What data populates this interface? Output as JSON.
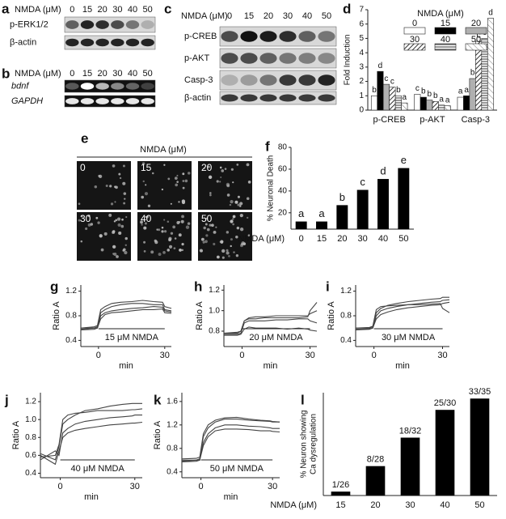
{
  "panels": {
    "a": {
      "letter": "a",
      "header": "NMDA   (μM)",
      "doses": [
        "0",
        "15",
        "20",
        "30",
        "40",
        "50"
      ],
      "rows": [
        "p-ERK1/2",
        "β-actin"
      ]
    },
    "b": {
      "letter": "b",
      "header": "NMDA   (μM)",
      "doses": [
        "0",
        "15",
        "20",
        "30",
        "40",
        "50"
      ],
      "rows": [
        "bdnf",
        "GAPDH"
      ]
    },
    "c": {
      "letter": "c",
      "header": "NMDA (μM)",
      "doses": [
        "0",
        "15",
        "20",
        "30",
        "40",
        "50"
      ],
      "rows": [
        "p-CREB",
        "p-AKT",
        "Casp-3",
        "β-actin"
      ]
    },
    "e": {
      "letter": "e",
      "header": "NMDA (μM)",
      "tiles": [
        "0",
        "15",
        "20",
        "30",
        "40",
        "50"
      ]
    }
  },
  "chart_data": [
    {
      "type": "bar",
      "letter": "d",
      "ylabel": "Fold Induction",
      "legend_title": "NMDA (μM)",
      "categories": [
        "p-CREB",
        "p-AKT",
        "Casp-3"
      ],
      "series": [
        {
          "name": "0",
          "color": "#ffffff",
          "pattern": null,
          "values": [
            1,
            1.1,
            0.9
          ],
          "letters": [
            "b",
            "c",
            "a"
          ]
        },
        {
          "name": "15",
          "color": "#000000",
          "pattern": null,
          "values": [
            2.7,
            0.9,
            1
          ],
          "letters": [
            "d",
            "b",
            "a"
          ]
        },
        {
          "name": "20",
          "color": "#b0b0b0",
          "pattern": null,
          "values": [
            1.8,
            0.7,
            2.2
          ],
          "letters": [
            "c",
            "b",
            "b"
          ]
        },
        {
          "name": "30",
          "color": "#555555",
          "pattern": "diagonal",
          "values": [
            1.6,
            0.6,
            4.8
          ],
          "letters": [
            "c",
            "b",
            "c"
          ]
        },
        {
          "name": "40",
          "color": "#555555",
          "pattern": "horizontal",
          "values": [
            1.0,
            0.35,
            5.0
          ],
          "letters": [
            "b",
            "a",
            "c"
          ]
        },
        {
          "name": "50",
          "color": "#888888",
          "pattern": "light-diagonal",
          "values": [
            0.5,
            0.3,
            6.4
          ],
          "letters": [
            "a",
            "a",
            "d"
          ]
        }
      ],
      "ylim": [
        0,
        7
      ],
      "yticks": [
        0,
        1,
        2,
        3,
        4,
        5,
        6,
        7
      ]
    },
    {
      "type": "bar",
      "letter": "f",
      "ylabel": "% Neuronal Death",
      "xlabel": "NMDA (μM)",
      "categories": [
        "0",
        "15",
        "20",
        "30",
        "40",
        "50"
      ],
      "values": [
        12,
        12,
        27,
        41,
        51,
        61
      ],
      "letters": [
        "a",
        "a",
        "b",
        "c",
        "d",
        "e"
      ],
      "color": "#000000",
      "ylim": [
        5,
        80
      ],
      "yticks": [
        20,
        40,
        60,
        80
      ]
    },
    {
      "type": "line",
      "letter": "g",
      "ylabel": "Ratio A",
      "xlabel": "min",
      "annotation": "15 μM NMDA",
      "color": "#444444",
      "x": [
        -8,
        -2,
        -0.5,
        1,
        3,
        6,
        10,
        15,
        20,
        25,
        29,
        30,
        33
      ],
      "xlim": [
        -8,
        33
      ],
      "xticks": [
        0,
        30
      ],
      "ylim": [
        0.3,
        1.3
      ],
      "yticks": [
        0.4,
        0.8,
        1.2
      ],
      "series": [
        {
          "values": [
            0.6,
            0.6,
            0.62,
            0.85,
            0.9,
            0.95,
            0.98,
            1.0,
            1.0,
            0.98,
            0.98,
            0.9,
            0.88
          ]
        },
        {
          "values": [
            0.58,
            0.6,
            0.6,
            0.8,
            0.85,
            0.88,
            0.9,
            0.92,
            0.93,
            0.95,
            0.94,
            0.88,
            0.86
          ]
        },
        {
          "values": [
            0.6,
            0.62,
            0.64,
            0.9,
            0.95,
            1.0,
            1.02,
            1.03,
            1.05,
            1.03,
            1.02,
            0.95,
            0.92
          ]
        },
        {
          "values": [
            0.57,
            0.58,
            0.6,
            0.75,
            0.82,
            0.85,
            0.86,
            0.88,
            0.9,
            0.9,
            0.91,
            0.85,
            0.84
          ]
        }
      ]
    },
    {
      "type": "line",
      "letter": "h",
      "ylabel": "Ratio A",
      "xlabel": "min",
      "annotation": "20 μM NMDA",
      "color": "#444444",
      "x": [
        -8,
        -2,
        -0.5,
        1,
        3,
        6,
        10,
        15,
        20,
        25,
        29,
        30,
        33
      ],
      "xlim": [
        -8,
        33
      ],
      "xticks": [
        0,
        30
      ],
      "ylim": [
        0.65,
        1.25
      ],
      "yticks": [
        0.8,
        {
          "value": 1.0,
          "label": "1.0"
        },
        1.2
      ],
      "series": [
        {
          "values": [
            0.78,
            0.78,
            0.8,
            0.9,
            0.92,
            0.92,
            0.93,
            0.93,
            0.93,
            0.93,
            0.94,
            1.0,
            1.08
          ]
        },
        {
          "values": [
            0.77,
            0.77,
            0.78,
            0.88,
            0.9,
            0.9,
            0.9,
            0.91,
            0.91,
            0.92,
            0.92,
            0.9,
            0.88
          ]
        },
        {
          "values": [
            0.76,
            0.76,
            0.77,
            0.82,
            0.84,
            0.83,
            0.83,
            0.83,
            0.82,
            0.83,
            0.82,
            0.81,
            0.8
          ]
        },
        {
          "values": [
            0.78,
            0.79,
            0.8,
            0.9,
            0.93,
            0.94,
            0.94,
            0.95,
            0.95,
            0.95,
            0.95,
            0.97,
            1.0
          ]
        }
      ]
    },
    {
      "type": "line",
      "letter": "i",
      "ylabel": "Ratio A",
      "xlabel": "min",
      "annotation": "30 μM NMDA",
      "color": "#444444",
      "x": [
        -8,
        -2,
        -0.5,
        1,
        3,
        6,
        10,
        15,
        20,
        25,
        29,
        30,
        33
      ],
      "xlim": [
        -8,
        33
      ],
      "xticks": [
        0,
        30
      ],
      "ylim": [
        0.3,
        1.3
      ],
      "yticks": [
        0.4,
        0.8,
        1.2
      ],
      "series": [
        {
          "values": [
            0.6,
            0.6,
            0.62,
            0.85,
            0.92,
            0.97,
            1.0,
            1.03,
            1.05,
            1.07,
            1.08,
            1.1,
            1.1
          ]
        },
        {
          "values": [
            0.58,
            0.59,
            0.6,
            0.8,
            0.88,
            0.92,
            0.95,
            0.98,
            1.0,
            1.02,
            1.03,
            1.05,
            1.06
          ]
        },
        {
          "values": [
            0.6,
            0.61,
            0.63,
            0.9,
            0.95,
            0.96,
            0.97,
            0.98,
            0.98,
            0.99,
            1.0,
            0.92,
            0.85
          ]
        },
        {
          "values": [
            0.57,
            0.58,
            0.6,
            0.75,
            0.82,
            0.86,
            0.9,
            0.93,
            0.95,
            0.97,
            0.98,
            1.0,
            1.02
          ]
        }
      ]
    },
    {
      "type": "line",
      "letter": "j",
      "ylabel": "Ratio A",
      "xlabel": "min",
      "annotation": "40 μM NMDA",
      "color": "#444444",
      "x": [
        -8,
        -2,
        -0.5,
        1,
        3,
        6,
        10,
        15,
        20,
        25,
        29,
        30,
        33
      ],
      "xlim": [
        -8,
        33
      ],
      "xticks": [
        0,
        30
      ],
      "ylim": [
        0.35,
        1.3
      ],
      "yticks": [
        0.4,
        0.6,
        0.8,
        {
          "value": 1.0,
          "label": "1.0"
        },
        1.2
      ],
      "series": [
        {
          "values": [
            0.62,
            0.55,
            0.7,
            0.95,
            1.0,
            1.05,
            1.1,
            1.12,
            1.15,
            1.17,
            1.18,
            1.18,
            1.18
          ]
        },
        {
          "values": [
            0.55,
            0.65,
            0.6,
            0.85,
            0.9,
            0.95,
            0.98,
            1.0,
            1.02,
            1.03,
            1.04,
            1.05,
            1.05
          ]
        },
        {
          "values": [
            0.6,
            0.5,
            0.65,
            0.8,
            0.85,
            0.88,
            0.9,
            0.92,
            0.94,
            0.95,
            0.96,
            0.96,
            0.97
          ]
        },
        {
          "values": [
            0.58,
            0.6,
            0.72,
            1.0,
            1.05,
            1.07,
            1.08,
            1.1,
            1.1,
            1.1,
            1.11,
            1.11,
            1.12
          ]
        }
      ]
    },
    {
      "type": "line",
      "letter": "k",
      "ylabel": "Ratio A",
      "xlabel": "min",
      "annotation": "50 μM NMDA",
      "color": "#444444",
      "x": [
        -8,
        -2,
        -0.5,
        1,
        3,
        6,
        10,
        15,
        20,
        25,
        29,
        30,
        33
      ],
      "xlim": [
        -8,
        33
      ],
      "xticks": [
        0,
        30
      ],
      "ylim": [
        0.3,
        1.75
      ],
      "yticks": [
        0.4,
        0.8,
        1.2,
        1.6
      ],
      "series": [
        {
          "values": [
            0.6,
            0.6,
            0.62,
            1.0,
            1.15,
            1.25,
            1.3,
            1.3,
            1.28,
            1.27,
            1.26,
            1.25,
            1.25
          ]
        },
        {
          "values": [
            0.58,
            0.6,
            0.6,
            0.9,
            1.05,
            1.15,
            1.2,
            1.2,
            1.18,
            1.17,
            1.15,
            1.14,
            1.14
          ]
        },
        {
          "values": [
            0.62,
            0.63,
            0.65,
            1.05,
            1.2,
            1.28,
            1.32,
            1.33,
            1.3,
            1.28,
            1.27,
            1.26,
            1.25
          ]
        },
        {
          "values": [
            0.57,
            0.58,
            0.6,
            0.85,
            1.0,
            1.1,
            1.13,
            1.13,
            1.12,
            1.1,
            1.1,
            1.09,
            1.08
          ]
        }
      ]
    },
    {
      "type": "bar",
      "letter": "l",
      "ylabel": [
        "% Neuron showing",
        "Ca dysregulation"
      ],
      "xlabel": "NMDA (μM)",
      "categories": [
        "15",
        "20",
        "30",
        "40",
        "50"
      ],
      "values": [
        3.8,
        28.6,
        56.3,
        83.3,
        94.3
      ],
      "annotations": [
        "1/26",
        "8/28",
        "18/32",
        "25/30",
        "33/35"
      ],
      "color": "#000000",
      "ylim": [
        0,
        100
      ]
    }
  ]
}
